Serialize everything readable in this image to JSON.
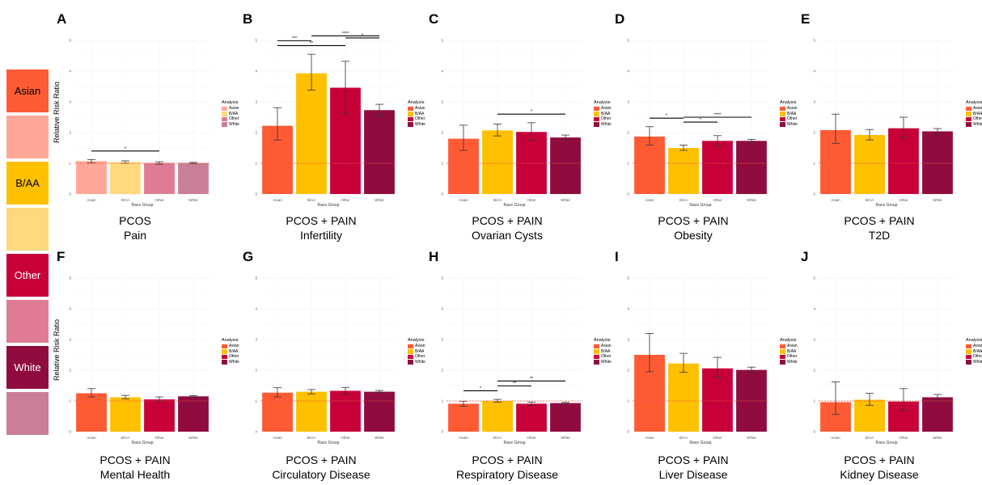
{
  "figure_label": "",
  "y_label": "Relative Risk Ratio",
  "x_label": "Race Group",
  "legend_title": "Analysis",
  "categories": [
    "Asian",
    "B/AA",
    "Other",
    "White"
  ],
  "colors": {
    "pain": [
      "#fea798",
      "#ffd97e",
      "#e07b96",
      "#c97f98"
    ],
    "pcos_pain": [
      "#fe5b35",
      "#ffc000",
      "#c70039",
      "#900c3f"
    ],
    "reference_line": "#e8574a"
  },
  "side_legend": [
    {
      "label": "Asian",
      "color": "#fe5b35"
    },
    {
      "label": "",
      "color": "#fea798"
    },
    {
      "label": "B/AA",
      "color": "#ffc000"
    },
    {
      "label": "",
      "color": "#ffd97e"
    },
    {
      "label": "Other",
      "color": "#c70039"
    },
    {
      "label": "",
      "color": "#e07b96"
    },
    {
      "label": "White",
      "color": "#900c3f"
    },
    {
      "label": "",
      "color": "#c97f98"
    }
  ],
  "chart_data": [
    {
      "panel": "A",
      "type": "bar",
      "title_line1": "PCOS",
      "title_line2": "Pain",
      "palette": "pain",
      "categories": [
        "Asian",
        "B/AA",
        "Other",
        "White"
      ],
      "values": [
        1.07,
        1.04,
        1.01,
        1.01
      ],
      "err_low": [
        1.01,
        1.0,
        0.97,
        0.99
      ],
      "err_high": [
        1.12,
        1.08,
        1.05,
        1.03
      ],
      "ylim": [
        0,
        5
      ],
      "significance": [
        {
          "from": 0,
          "to": 2,
          "level": 1,
          "label": "*"
        }
      ]
    },
    {
      "panel": "B",
      "type": "bar",
      "title_line1": "PCOS + PAIN",
      "title_line2": "Infertility",
      "palette": "pcos_pain",
      "categories": [
        "Asian",
        "B/AA",
        "Other",
        "White"
      ],
      "values": [
        2.22,
        3.93,
        3.46,
        2.73
      ],
      "err_low": [
        1.76,
        3.38,
        2.62,
        2.56
      ],
      "err_high": [
        2.81,
        4.55,
        4.32,
        2.92
      ],
      "ylim": [
        0,
        5
      ],
      "significance": [
        {
          "from": 0,
          "to": 2,
          "level": 1,
          "label": "**"
        },
        {
          "from": 0,
          "to": 1,
          "level": 2,
          "label": "***"
        },
        {
          "from": 1,
          "to": 3,
          "level": 3,
          "label": "****"
        },
        {
          "from": 2,
          "to": 3,
          "level": 4,
          "label": "*"
        }
      ]
    },
    {
      "panel": "C",
      "type": "bar",
      "title_line1": "PCOS + PAIN",
      "title_line2": "Ovarian Cysts",
      "palette": "pcos_pain",
      "categories": [
        "Asian",
        "B/AA",
        "Other",
        "White"
      ],
      "values": [
        1.8,
        2.07,
        2.02,
        1.84
      ],
      "err_low": [
        1.42,
        1.89,
        1.76,
        1.77
      ],
      "err_high": [
        2.24,
        2.28,
        2.32,
        1.92
      ],
      "ylim": [
        0,
        5
      ],
      "significance": [
        {
          "from": 1,
          "to": 3,
          "level": 1,
          "label": "*"
        }
      ]
    },
    {
      "panel": "D",
      "type": "bar",
      "title_line1": "PCOS + PAIN",
      "title_line2": "Obesity",
      "palette": "pcos_pain",
      "categories": [
        "Asian",
        "B/AA",
        "Other",
        "White"
      ],
      "values": [
        1.87,
        1.5,
        1.73,
        1.73
      ],
      "err_low": [
        1.59,
        1.42,
        1.57,
        1.69
      ],
      "err_high": [
        2.19,
        1.59,
        1.9,
        1.78
      ],
      "ylim": [
        0,
        5
      ],
      "significance": [
        {
          "from": 0,
          "to": 1,
          "level": 1,
          "label": "*"
        },
        {
          "from": 1,
          "to": 2,
          "level": 2,
          "label": "*"
        },
        {
          "from": 1,
          "to": 3,
          "level": 3,
          "label": "****"
        }
      ]
    },
    {
      "panel": "E",
      "type": "bar",
      "title_line1": "PCOS + PAIN",
      "title_line2": "T2D",
      "palette": "pcos_pain",
      "categories": [
        "Asian",
        "B/AA",
        "Other",
        "White"
      ],
      "values": [
        2.08,
        1.92,
        2.14,
        2.04
      ],
      "err_low": [
        1.65,
        1.76,
        1.84,
        1.96
      ],
      "err_high": [
        2.6,
        2.1,
        2.5,
        2.13
      ],
      "ylim": [
        0,
        5
      ],
      "significance": []
    },
    {
      "panel": "F",
      "type": "bar",
      "title_line1": "PCOS + PAIN",
      "title_line2": "Mental Health",
      "palette": "pcos_pain",
      "categories": [
        "Asian",
        "B/AA",
        "Other",
        "White"
      ],
      "values": [
        1.25,
        1.12,
        1.05,
        1.15
      ],
      "err_low": [
        1.13,
        1.07,
        0.98,
        1.13
      ],
      "err_high": [
        1.4,
        1.18,
        1.13,
        1.17
      ],
      "ylim": [
        0,
        5
      ],
      "significance": []
    },
    {
      "panel": "G",
      "type": "bar",
      "title_line1": "PCOS + PAIN",
      "title_line2": "Circulatory Disease",
      "palette": "pcos_pain",
      "categories": [
        "Asian",
        "B/AA",
        "Other",
        "White"
      ],
      "values": [
        1.27,
        1.3,
        1.33,
        1.3
      ],
      "err_low": [
        1.13,
        1.23,
        1.22,
        1.27
      ],
      "err_high": [
        1.43,
        1.37,
        1.44,
        1.34
      ],
      "ylim": [
        0,
        5
      ],
      "significance": []
    },
    {
      "panel": "H",
      "type": "bar",
      "title_line1": "PCOS + PAIN",
      "title_line2": "Respiratory Disease",
      "palette": "pcos_pain",
      "categories": [
        "Asian",
        "B/AA",
        "Other",
        "White"
      ],
      "values": [
        0.91,
        1.0,
        0.91,
        0.93
      ],
      "err_low": [
        0.83,
        0.96,
        0.86,
        0.91
      ],
      "err_high": [
        0.99,
        1.05,
        0.96,
        0.95
      ],
      "ylim": [
        0,
        5
      ],
      "significance": [
        {
          "from": 0,
          "to": 1,
          "level": 1,
          "label": "*"
        },
        {
          "from": 1,
          "to": 2,
          "level": 2,
          "label": "**"
        },
        {
          "from": 1,
          "to": 3,
          "level": 3,
          "label": "**"
        }
      ]
    },
    {
      "panel": "I",
      "type": "bar",
      "title_line1": "PCOS + PAIN",
      "title_line2": "Liver Disease",
      "palette": "pcos_pain",
      "categories": [
        "Asian",
        "B/AA",
        "Other",
        "White"
      ],
      "values": [
        2.5,
        2.22,
        2.06,
        2.01
      ],
      "err_low": [
        1.95,
        1.93,
        1.77,
        1.92
      ],
      "err_high": [
        3.2,
        2.55,
        2.42,
        2.1
      ],
      "ylim": [
        0,
        5
      ],
      "significance": []
    },
    {
      "panel": "J",
      "type": "bar",
      "title_line1": "PCOS + PAIN",
      "title_line2": "Kidney Disease",
      "palette": "pcos_pain",
      "categories": [
        "Asian",
        "B/AA",
        "Other",
        "White"
      ],
      "values": [
        0.96,
        1.04,
        0.98,
        1.12
      ],
      "err_low": [
        0.56,
        0.86,
        0.7,
        1.03
      ],
      "err_high": [
        1.62,
        1.25,
        1.4,
        1.21
      ],
      "ylim": [
        0,
        5
      ],
      "significance": []
    }
  ]
}
